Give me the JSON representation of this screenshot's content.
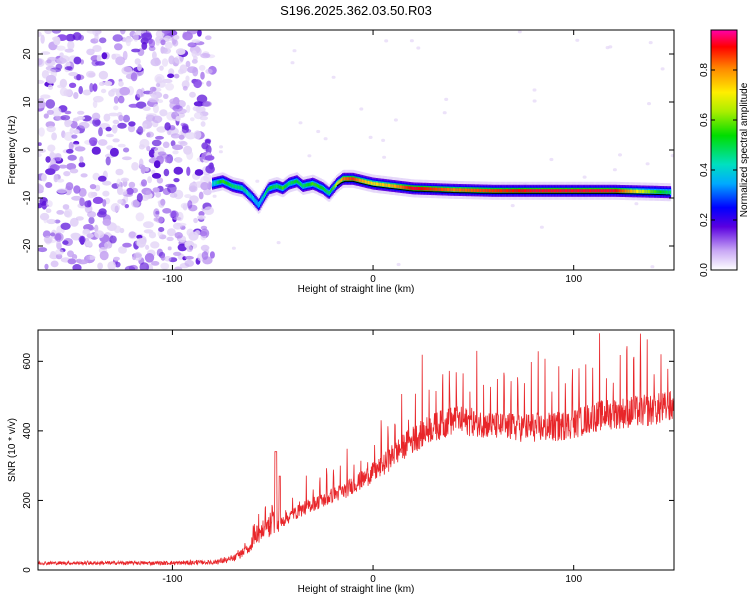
{
  "title": "S196.2025.362.03.50.R03",
  "chart_data": [
    {
      "type": "heatmap",
      "title": "",
      "xlabel": "Height of straight line (km)",
      "ylabel": "Frequency (Hz)",
      "xlim": [
        -167,
        150
      ],
      "ylim": [
        -25,
        25
      ],
      "xticks": [
        -100,
        0,
        100
      ],
      "yticks": [
        20,
        10,
        0,
        -10,
        -20
      ],
      "noise_region_x": [
        -167,
        -80
      ],
      "ridge": {
        "x": [
          -80,
          -75,
          -70,
          -65,
          -60,
          -57,
          -55,
          -52,
          -48,
          -45,
          -42,
          -38,
          -35,
          -30,
          -25,
          -22,
          -20,
          -18,
          -15,
          -10,
          -5,
          0,
          10,
          20,
          40,
          60,
          80,
          100,
          120,
          140,
          148
        ],
        "y": [
          -7,
          -6.5,
          -7.5,
          -8,
          -10,
          -11.5,
          -10,
          -8,
          -7.5,
          -8,
          -7,
          -6.5,
          -7.5,
          -7,
          -8,
          -9,
          -8,
          -7,
          -6,
          -6,
          -6.5,
          -7,
          -7.5,
          -8,
          -8.3,
          -8.5,
          -8.5,
          -8.5,
          -8.5,
          -8.7,
          -8.8
        ],
        "amplitude": [
          0.4,
          0.6,
          0.5,
          0.5,
          0.4,
          0.35,
          0.45,
          0.55,
          0.5,
          0.6,
          0.5,
          0.55,
          0.5,
          0.6,
          0.55,
          0.5,
          0.6,
          0.7,
          0.85,
          0.9,
          0.8,
          0.75,
          0.8,
          0.95,
          0.85,
          0.9,
          0.95,
          0.95,
          0.95,
          0.6,
          0.5
        ]
      },
      "colorbar": {
        "label": "Normalized spectral amplitude",
        "range": [
          0,
          0.96
        ],
        "ticks": [
          "0.0",
          "0.2",
          "0.4",
          "0.6",
          "0.8"
        ]
      }
    },
    {
      "type": "line",
      "title": "",
      "xlabel": "Height of straight line (km)",
      "ylabel": "SNR (10 * v/v)",
      "xlim": [
        -167,
        150
      ],
      "ylim": [
        0,
        690
      ],
      "xticks": [
        -100,
        0,
        100
      ],
      "yticks": [
        0,
        200,
        400,
        600
      ],
      "series": [
        {
          "name": "SNR",
          "color": "#e8262a",
          "baseline": {
            "x": [
              -167,
              -140,
              -100,
              -80,
              -70,
              -65,
              -60,
              -55,
              -50,
              -45,
              -40,
              -35,
              -30,
              -25,
              -20,
              -15,
              -10,
              -5,
              0,
              5,
              10,
              15,
              20,
              25,
              30,
              40,
              50,
              60,
              70,
              80,
              90,
              100,
              110,
              120,
              130,
              140,
              150
            ],
            "y": [
              20,
              20,
              20,
              22,
              30,
              50,
              70,
              85,
              110,
              140,
              160,
              175,
              190,
              200,
              215,
              225,
              245,
              260,
              280,
              300,
              330,
              355,
              375,
              395,
              410,
              430,
              425,
              415,
              410,
              410,
              410,
              420,
              440,
              450,
              455,
              460,
              470
            ]
          },
          "spike_amplitude": {
            "x": [
              -167,
              -80,
              -60,
              -45,
              -30,
              -10,
              0,
              20,
              40,
              60,
              80,
              100,
              120,
              150
            ],
            "y": [
              0,
              5,
              40,
              60,
              70,
              90,
              110,
              160,
              170,
              150,
              170,
              170,
              180,
              190
            ]
          }
        }
      ]
    }
  ]
}
